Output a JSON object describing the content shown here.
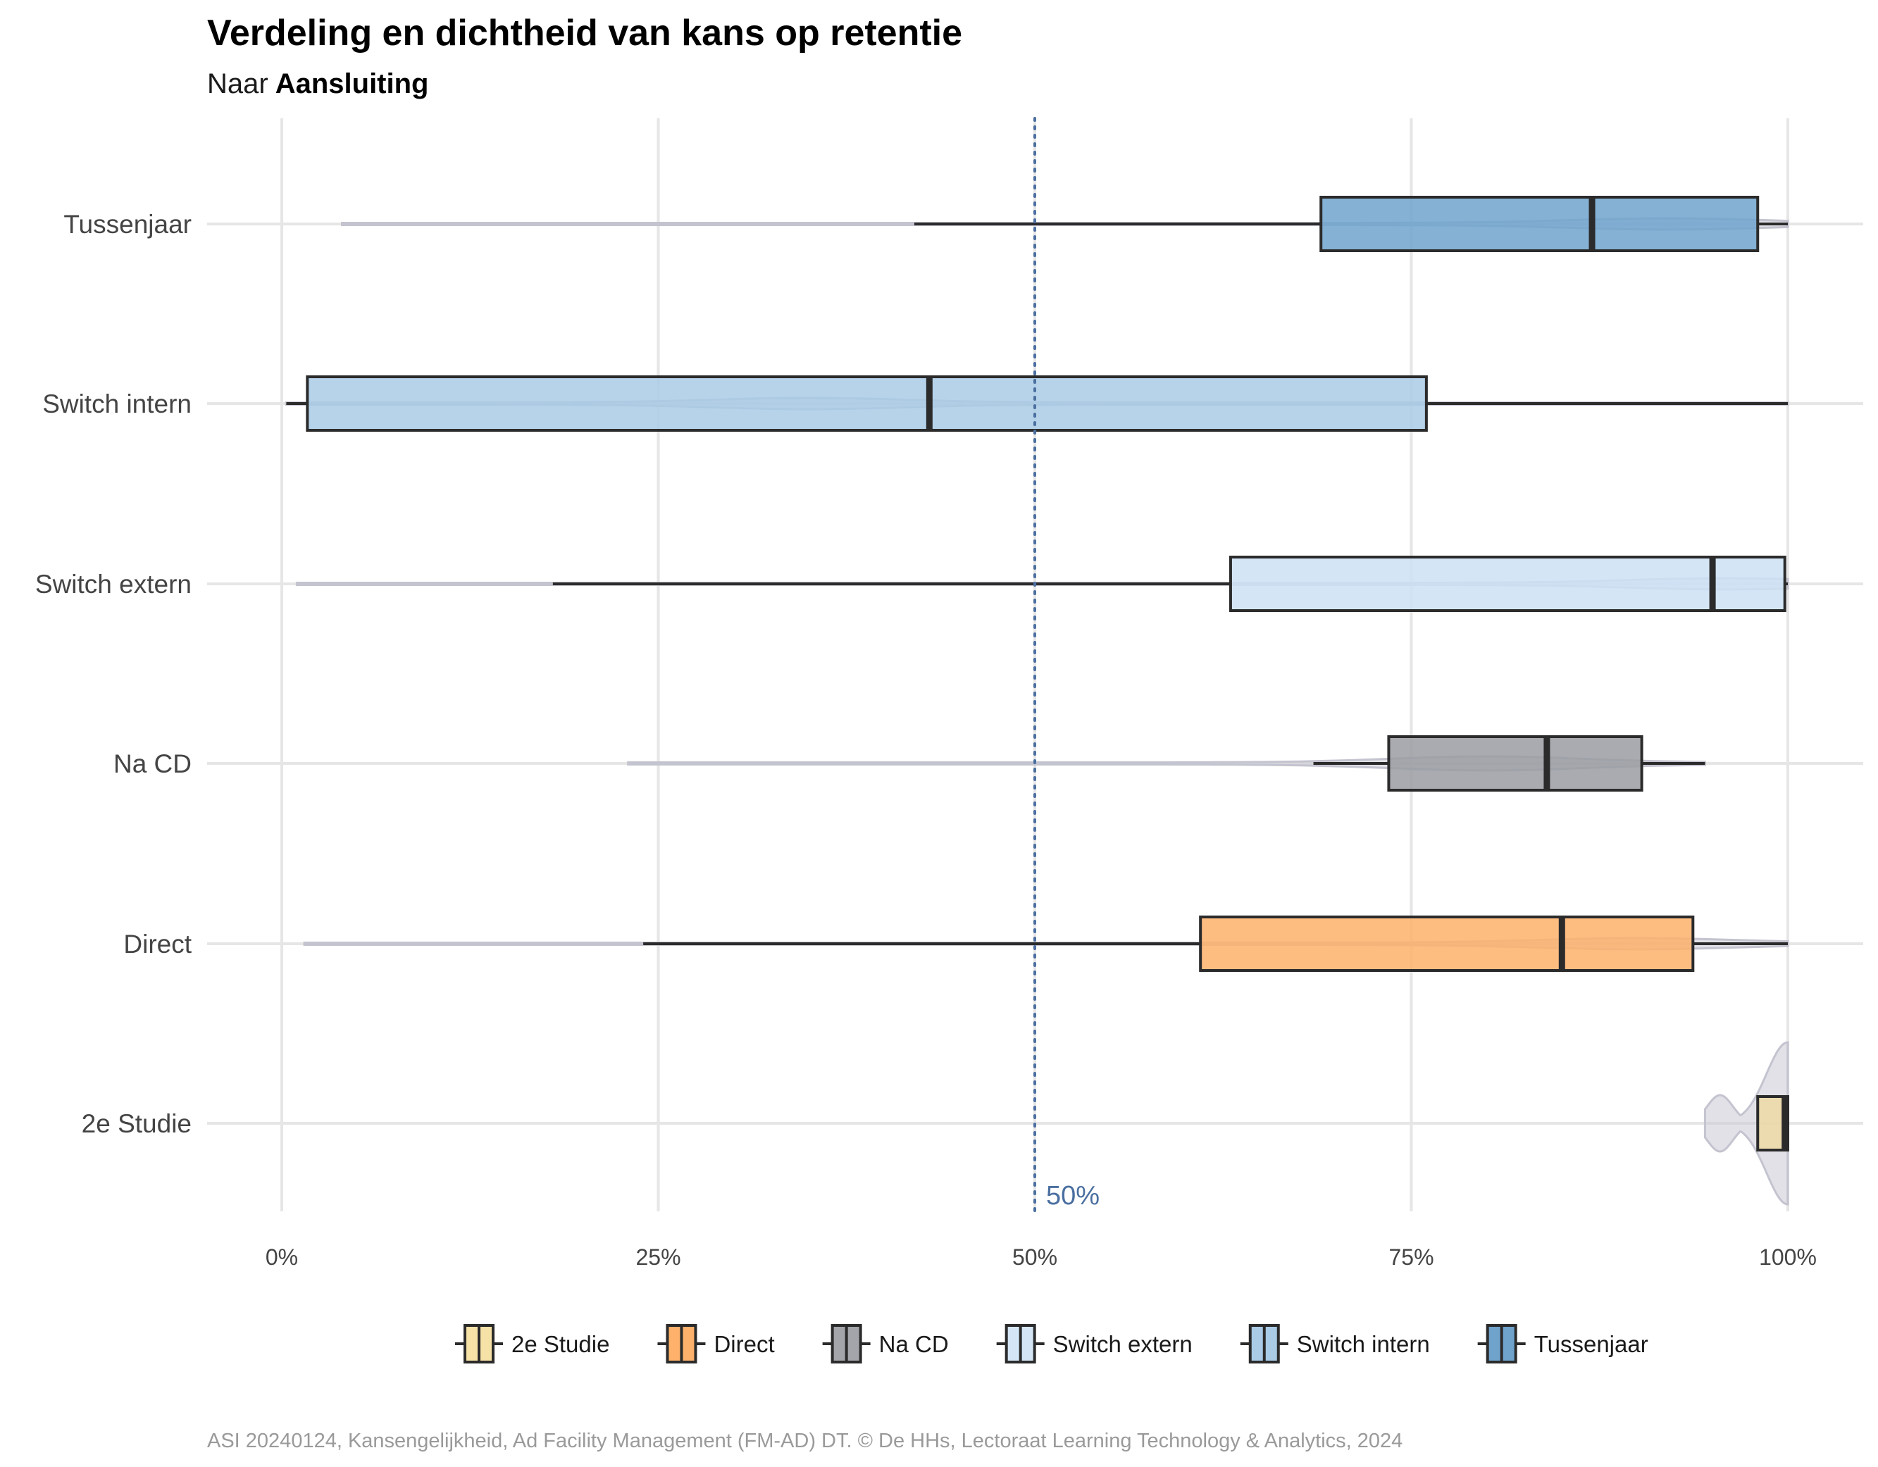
{
  "chart_data": {
    "type": "boxplot",
    "title": "Verdeling en dichtheid van kans op retentie",
    "subtitle_prefix": "Naar",
    "subtitle_bold": "Aansluiting",
    "xlim": [
      0,
      1
    ],
    "x_ticks": [
      0,
      0.25,
      0.5,
      0.75,
      1
    ],
    "x_tick_labels": [
      "0%",
      "25%",
      "50%",
      "75%",
      "100%"
    ],
    "grid": true,
    "reference_line": {
      "value": 0.5,
      "label": "50%",
      "color": "#4a6fa0",
      "style": "dotted"
    },
    "categories": [
      "Tussenjaar",
      "Switch intern",
      "Switch extern",
      "Na CD",
      "Direct",
      "2e Studie"
    ],
    "series": [
      {
        "category": "Tussenjaar",
        "color": "#6fa3cc",
        "violin_min": 0.04,
        "whisker_low": 0.42,
        "q1": 0.69,
        "median": 0.87,
        "q3": 0.98,
        "whisker_high": 1.0,
        "violin_max": 1.0,
        "violin_peak": 0.92
      },
      {
        "category": "Switch intern",
        "color": "#a9cbe6",
        "violin_min": 0.003,
        "whisker_low": 0.003,
        "q1": 0.017,
        "median": 0.43,
        "q3": 0.76,
        "whisker_high": 1.0,
        "violin_max": 1.0,
        "violin_peak": 0.35
      },
      {
        "category": "Switch extern",
        "color": "#cce2f4",
        "violin_min": 0.01,
        "whisker_low": 0.18,
        "q1": 0.63,
        "median": 0.95,
        "q3": 0.998,
        "whisker_high": 1.0,
        "violin_max": 1.0,
        "violin_peak": 0.96
      },
      {
        "category": "Na CD",
        "color": "#9a9ca2",
        "violin_min": 0.23,
        "whisker_low": 0.685,
        "q1": 0.735,
        "median": 0.84,
        "q3": 0.903,
        "whisker_high": 0.945,
        "violin_max": 0.945,
        "violin_peak": 0.8
      },
      {
        "category": "Direct",
        "color": "#fdb16b",
        "violin_min": 0.015,
        "whisker_low": 0.24,
        "q1": 0.61,
        "median": 0.85,
        "q3": 0.937,
        "whisker_high": 1.0,
        "violin_max": 1.0,
        "violin_peak": 0.9
      },
      {
        "category": "2e Studie",
        "color": "#ecd9a3",
        "violin_min": 0.945,
        "whisker_low": 0.98,
        "q1": 0.98,
        "median": 0.998,
        "q3": 1.0,
        "whisker_high": 1.0,
        "violin_max": 1.0,
        "violin_peak": 1.0
      }
    ],
    "legend": {
      "placement": "bottom",
      "entries": [
        {
          "label": "2e Studie",
          "color": "#f6e1a6"
        },
        {
          "label": "Direct",
          "color": "#fdb16b"
        },
        {
          "label": "Na CD",
          "color": "#a3a5aa"
        },
        {
          "label": "Switch extern",
          "color": "#d4e6f6"
        },
        {
          "label": "Switch intern",
          "color": "#a9cbe6"
        },
        {
          "label": "Tussenjaar",
          "color": "#6fa3cc"
        }
      ]
    },
    "caption": "ASI 20240124, Kansengelijkheid, Ad Facility Management (FM-AD) DT. © De HHs, Lectoraat Learning Technology & Analytics, 2024"
  }
}
